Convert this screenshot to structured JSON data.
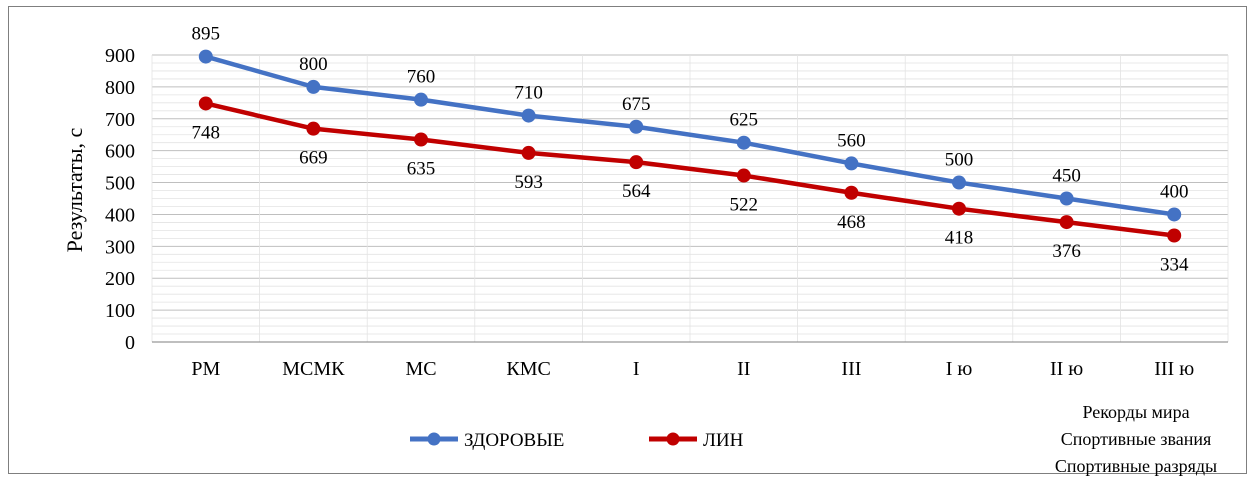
{
  "chart_data": {
    "type": "line",
    "title": "",
    "xlabel": "",
    "ylabel": "Результаты, с",
    "ylim": [
      0,
      900
    ],
    "yticks": [
      0,
      100,
      200,
      300,
      400,
      500,
      600,
      700,
      800,
      900
    ],
    "grid": true,
    "legend_position": "bottom",
    "categories": [
      "РМ",
      "МСМК",
      "МС",
      "КМС",
      "I",
      "II",
      "III",
      "I ю",
      "II ю",
      "III ю"
    ],
    "series": [
      {
        "name": "ЗДОРОВЫЕ",
        "color": "#4472C4",
        "values": [
          895,
          800,
          760,
          710,
          675,
          625,
          560,
          500,
          450,
          400
        ],
        "label_position": "above"
      },
      {
        "name": "ЛИН",
        "color": "#C00000",
        "values": [
          748,
          669,
          635,
          593,
          564,
          522,
          468,
          418,
          376,
          334
        ],
        "label_position": "below"
      }
    ],
    "annotations": [
      "Рекорды мира",
      "Спортивные звания",
      "Спортивные разряды"
    ]
  }
}
